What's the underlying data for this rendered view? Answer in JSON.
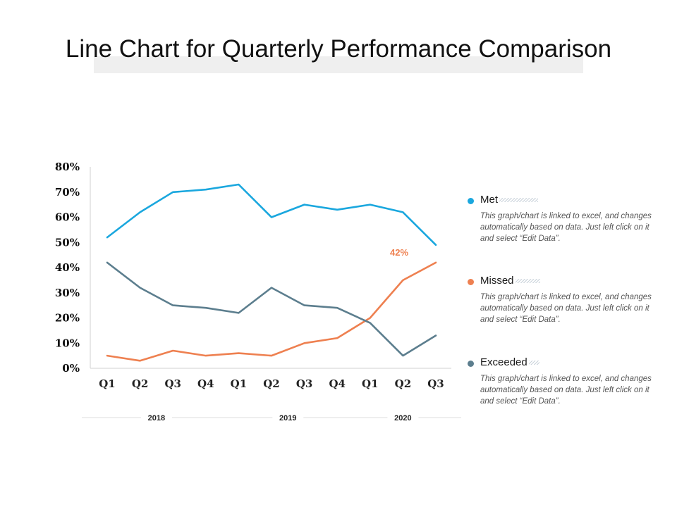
{
  "title": "Line Chart for Quarterly Performance Comparison",
  "colors": {
    "met": "#1aa7de",
    "missed": "#ee8050",
    "exceeded": "#5c7e8e",
    "axis": "#d0d0d0",
    "text": "#111111"
  },
  "chart_data": {
    "type": "line",
    "title": "Line Chart for Quarterly Performance Comparison",
    "categories": [
      "Q1",
      "Q2",
      "Q3",
      "Q4",
      "Q1",
      "Q2",
      "Q3",
      "Q4",
      "Q1",
      "Q2",
      "Q3"
    ],
    "year_groups": [
      {
        "label": "2018",
        "from": 0,
        "to": 3
      },
      {
        "label": "2019",
        "from": 4,
        "to": 7
      },
      {
        "label": "2020",
        "from": 8,
        "to": 10
      }
    ],
    "series": [
      {
        "name": "Met",
        "key": "met",
        "values": [
          52,
          62,
          70,
          71,
          73,
          60,
          65,
          63,
          65,
          62,
          49
        ]
      },
      {
        "name": "Missed",
        "key": "missed",
        "values": [
          5,
          3,
          7,
          5,
          6,
          5,
          10,
          12,
          20,
          35,
          42
        ]
      },
      {
        "name": "Exceeded",
        "key": "exceeded",
        "values": [
          42,
          32,
          25,
          24,
          22,
          32,
          25,
          24,
          18,
          5,
          13
        ]
      }
    ],
    "yticks": [
      "0%",
      "10%",
      "20%",
      "30%",
      "40%",
      "50%",
      "60%",
      "70%",
      "80%"
    ],
    "ylim": [
      0,
      80
    ],
    "annotation": {
      "text": "42%",
      "series": "Missed",
      "index": 10
    },
    "xlabel": "",
    "ylabel": ""
  },
  "legend": [
    {
      "name": "Met",
      "key": "met",
      "description": "This graph/chart is linked to excel, and changes automatically based on data. Just left click on it and select “Edit Data”."
    },
    {
      "name": "Missed",
      "key": "missed",
      "description": "This graph/chart is linked to excel, and changes automatically based on data. Just left click on it and select “Edit Data”."
    },
    {
      "name": "Exceeded",
      "key": "exceeded",
      "description": "This graph/chart is linked to excel, and changes automatically based on data. Just left click on it and select “Edit Data”."
    }
  ]
}
